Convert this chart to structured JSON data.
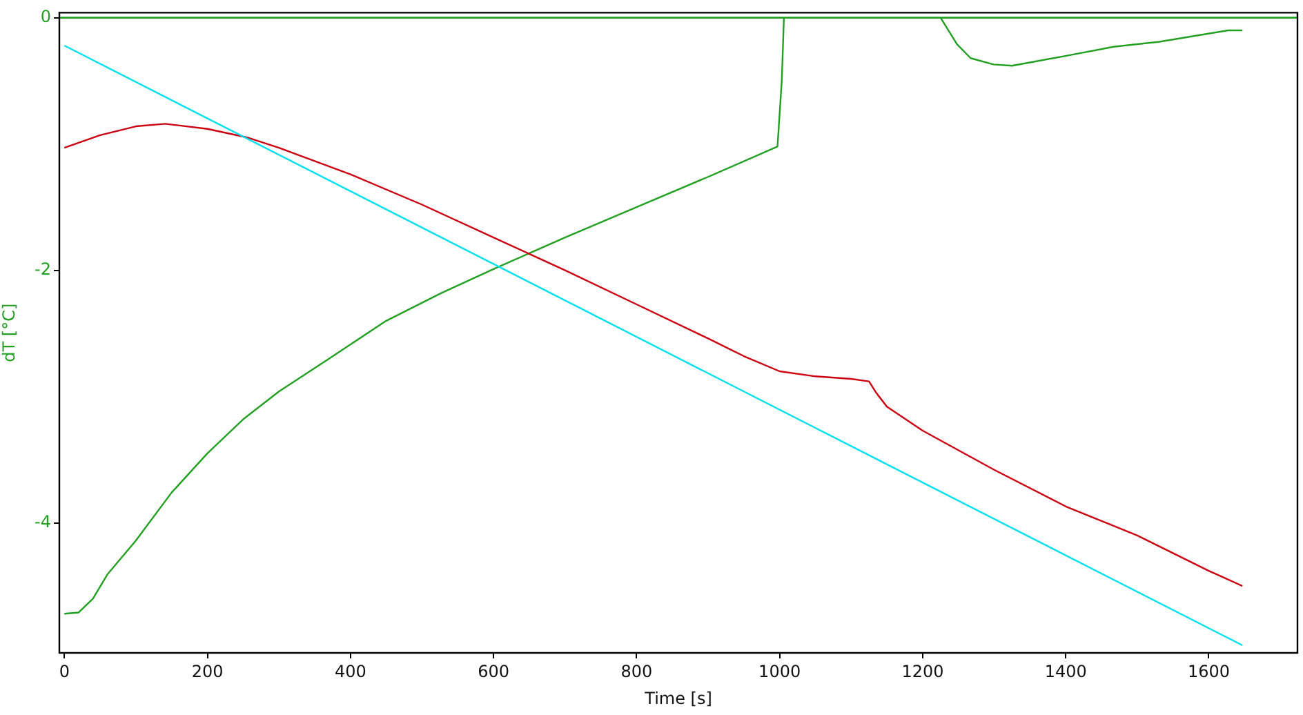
{
  "chart_data": {
    "type": "line",
    "xlabel": "Time [s]",
    "ylabel": "dT [°C]",
    "xlim": [
      -7,
      1724
    ],
    "ylim": [
      -5.03,
      0.04
    ],
    "xticks": [
      0,
      200,
      400,
      600,
      800,
      1000,
      1200,
      1400,
      1600
    ],
    "yticks": [
      0,
      -2,
      -4
    ],
    "grid": false,
    "legend": false,
    "marker": "none",
    "line_style": "solid",
    "ref_lines": [
      {
        "axis": "y",
        "value": 0,
        "color": "#22a022"
      }
    ],
    "series": [
      {
        "color": "#00e0ee",
        "x": [
          0,
          1647
        ],
        "values": [
          -0.22,
          -4.97
        ]
      },
      {
        "color": "#cc0011",
        "x": [
          0,
          50,
          100,
          141,
          200,
          257,
          300,
          400,
          500,
          600,
          700,
          800,
          900,
          950,
          1000,
          1050,
          1100,
          1125,
          1135,
          1150,
          1200,
          1300,
          1400,
          1500,
          1600,
          1647
        ],
        "values": [
          -1.03,
          -0.93,
          -0.86,
          -0.84,
          -0.88,
          -0.95,
          -1.03,
          -1.24,
          -1.48,
          -1.74,
          -2.0,
          -2.27,
          -2.54,
          -2.68,
          -2.8,
          -2.84,
          -2.86,
          -2.88,
          -2.97,
          -3.08,
          -3.27,
          -3.58,
          -3.87,
          -4.1,
          -4.38,
          -4.5
        ]
      },
      {
        "color": "#22a022",
        "x": [
          0,
          20,
          40,
          60,
          100,
          150,
          200,
          250,
          300,
          370,
          450,
          527,
          600,
          700,
          800,
          900,
          997,
          1003,
          1006,
          1115,
          1225,
          1248,
          1267,
          1299,
          1325,
          1402,
          1467,
          1531,
          1595,
          1627,
          1647
        ],
        "values": [
          -4.72,
          -4.71,
          -4.6,
          -4.41,
          -4.14,
          -3.76,
          -3.45,
          -3.18,
          -2.96,
          -2.7,
          -2.4,
          -2.18,
          -1.99,
          -1.74,
          -1.5,
          -1.26,
          -1.02,
          -0.5,
          0,
          null,
          0,
          -0.21,
          -0.32,
          -0.37,
          -0.38,
          -0.3,
          -0.23,
          -0.19,
          -0.13,
          -0.1,
          -0.1
        ]
      }
    ]
  }
}
